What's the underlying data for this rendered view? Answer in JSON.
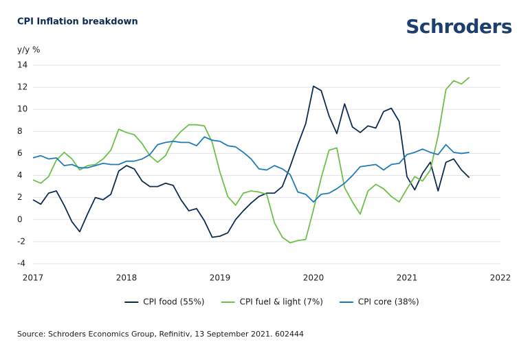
{
  "brand": "Schroders",
  "chart_data": {
    "type": "line",
    "title": "CPI Inflation breakdown",
    "y_label": "y/y %",
    "source": "Source: Schroders Economics Group, Refinitiv, 13 September 2021. 602444",
    "x": [
      2017,
      2017.083,
      2017.167,
      2017.25,
      2017.333,
      2017.417,
      2017.5,
      2017.583,
      2017.667,
      2017.75,
      2017.833,
      2017.917,
      2018,
      2018.083,
      2018.167,
      2018.25,
      2018.333,
      2018.417,
      2018.5,
      2018.583,
      2018.667,
      2018.75,
      2018.833,
      2018.917,
      2019,
      2019.083,
      2019.167,
      2019.25,
      2019.333,
      2019.417,
      2019.5,
      2019.583,
      2019.667,
      2019.75,
      2019.833,
      2019.917,
      2020,
      2020.083,
      2020.167,
      2020.25,
      2020.333,
      2020.417,
      2020.5,
      2020.583,
      2020.667,
      2020.75,
      2020.833,
      2020.917,
      2021,
      2021.083,
      2021.167,
      2021.25,
      2021.333,
      2021.417,
      2021.5,
      2021.583,
      2021.667
    ],
    "series": [
      {
        "name": "CPI food (55%)",
        "color": "#0d2b52",
        "values": [
          1.8,
          1.4,
          2.4,
          2.6,
          1.3,
          -0.2,
          -1.1,
          0.5,
          2.0,
          1.8,
          2.3,
          4.4,
          4.9,
          4.6,
          3.5,
          3.0,
          3.0,
          3.3,
          3.1,
          1.8,
          0.8,
          1.0,
          -0.1,
          -1.6,
          -1.5,
          -1.2,
          0.0,
          0.8,
          1.5,
          2.1,
          2.4,
          2.4,
          3.0,
          4.8,
          6.8,
          8.7,
          12.1,
          11.7,
          9.4,
          7.8,
          10.5,
          8.4,
          7.9,
          8.5,
          8.3,
          9.8,
          10.1,
          8.9,
          3.9,
          2.7,
          4.2,
          5.2,
          2.6,
          5.2,
          5.5,
          4.5,
          3.8
        ]
      },
      {
        "name": "CPI fuel & light (7%)",
        "color": "#6cc04a",
        "values": [
          3.6,
          3.3,
          3.9,
          5.4,
          6.1,
          5.5,
          4.5,
          4.9,
          5.0,
          5.5,
          6.3,
          8.2,
          7.9,
          7.7,
          6.9,
          5.8,
          5.2,
          5.8,
          7.2,
          8.0,
          8.6,
          8.6,
          8.5,
          7.0,
          4.3,
          2.1,
          1.3,
          2.4,
          2.6,
          2.5,
          2.3,
          -0.3,
          -1.6,
          -2.1,
          -1.9,
          -1.8,
          0.9,
          3.8,
          6.3,
          6.5,
          2.9,
          1.6,
          0.5,
          2.6,
          3.2,
          2.8,
          2.1,
          1.6,
          2.8,
          3.9,
          3.5,
          4.5,
          7.6,
          11.8,
          12.6,
          12.3,
          12.9
        ]
      },
      {
        "name": "CPI core (38%)",
        "color": "#1f7bb6",
        "values": [
          5.6,
          5.8,
          5.5,
          5.6,
          4.9,
          5.0,
          4.7,
          4.7,
          4.9,
          5.1,
          5.0,
          5.0,
          5.3,
          5.3,
          5.5,
          5.9,
          6.8,
          7.0,
          7.1,
          7.0,
          7.0,
          6.7,
          7.5,
          7.2,
          7.1,
          6.7,
          6.6,
          6.1,
          5.5,
          4.6,
          4.5,
          4.9,
          4.6,
          4.1,
          2.5,
          2.3,
          1.6,
          2.3,
          2.4,
          2.8,
          3.3,
          4.0,
          4.8,
          4.9,
          5.0,
          4.5,
          5.0,
          5.1,
          5.9,
          6.1,
          6.4,
          6.1,
          5.9,
          6.8,
          6.1,
          6.0,
          6.1
        ]
      }
    ],
    "xlim": [
      2017,
      2022
    ],
    "xticks": [
      2017,
      2018,
      2019,
      2020,
      2021,
      2022
    ],
    "ylim": [
      -4,
      14
    ],
    "yticks": [
      -4,
      -2,
      0,
      2,
      4,
      6,
      8,
      10,
      12,
      14
    ],
    "grid": true,
    "legend": "bottom"
  }
}
